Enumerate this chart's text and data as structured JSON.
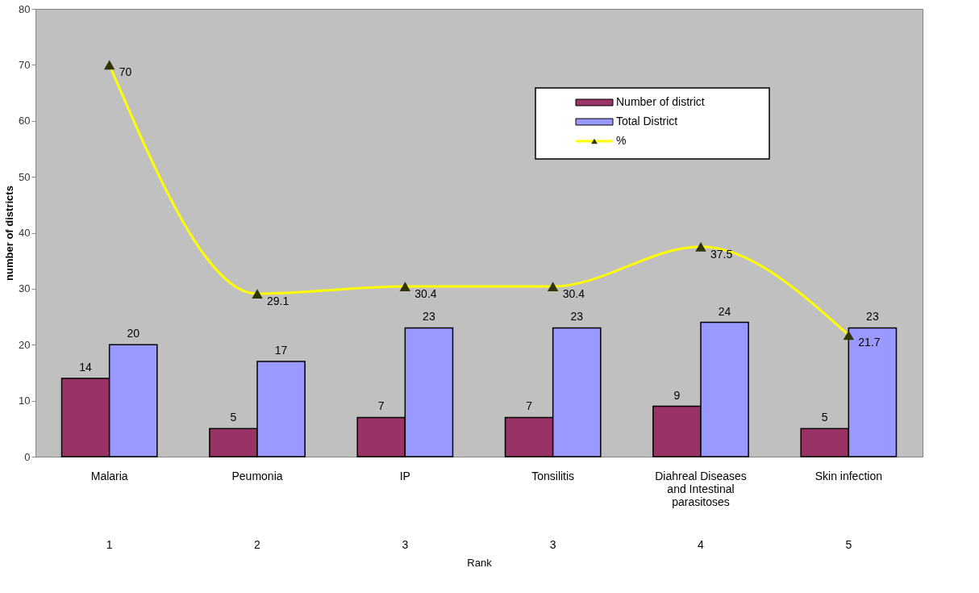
{
  "chart_data": {
    "type": "bar",
    "xlabel": "Rank",
    "ylabel": "number of districts",
    "categories": [
      "Malaria",
      "Peumonia",
      "IP",
      "Tonsilitis",
      "Diahreal Diseases and Intestinal parasitoses",
      "Skin infection"
    ],
    "series": [
      {
        "name": "Number of district",
        "color": "#993366",
        "values": [
          14,
          5,
          7,
          7,
          9,
          5
        ]
      },
      {
        "name": "Total District",
        "color": "#9999ff",
        "values": [
          20,
          17,
          23,
          23,
          24,
          23
        ]
      },
      {
        "name": "%",
        "type": "line",
        "color": "#ffff00",
        "values": [
          70,
          29.1,
          30.4,
          30.4,
          37.5,
          21.7
        ]
      }
    ],
    "ylim": [
      0,
      80
    ],
    "yticks": [
      0,
      10,
      20,
      30,
      40,
      50,
      60,
      70,
      80
    ],
    "grid": false,
    "legend": "top right",
    "marker": "triangle",
    "line_style": "solid",
    "data_labels": true,
    "annotations": [
      "1",
      "2",
      "3",
      "3",
      "4",
      "5"
    ]
  }
}
